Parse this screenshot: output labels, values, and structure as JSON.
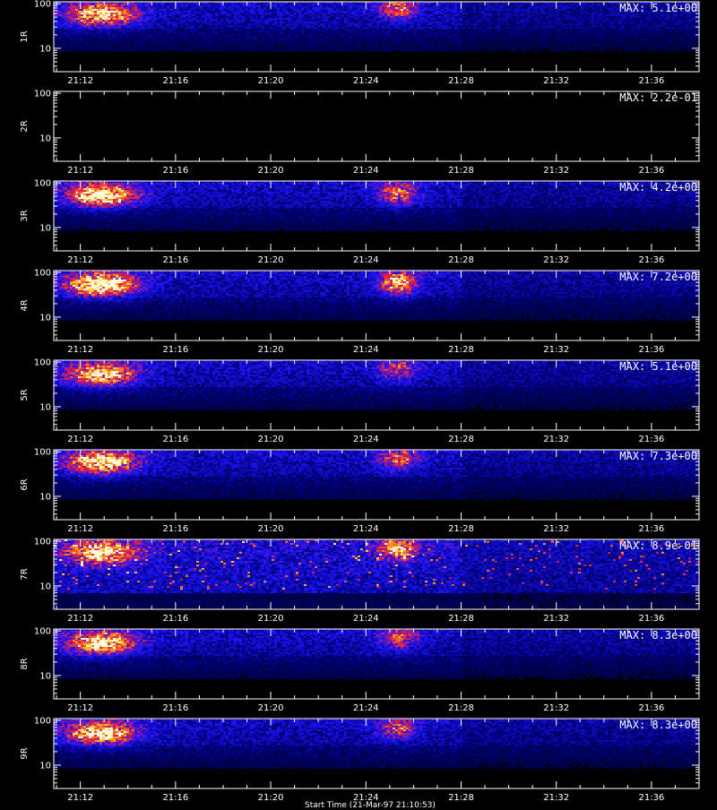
{
  "figure": {
    "footer_text": "Start Time (21-Mar-97 21:10:53)",
    "colors": {
      "background": "#000000",
      "frame": "#ffffff",
      "text": "#ffffff"
    }
  },
  "chart_data": [
    {
      "type": "heatmap",
      "ylabel": "1R",
      "max_label": "MAX: 5.1e+00",
      "y_tick_labels": [
        "100",
        "10"
      ],
      "x_tick_labels": [
        "21:12",
        "21:16",
        "21:20",
        "21:24",
        "21:28",
        "21:32",
        "21:36"
      ],
      "colorscale": "black-blue-red-yellow-white",
      "yscale": "log",
      "hotspots": [
        {
          "time": "21:12",
          "y": 60,
          "intensity": 0.85
        },
        {
          "time": "21:25",
          "y": 80,
          "intensity": 0.55
        }
      ]
    },
    {
      "type": "heatmap",
      "ylabel": "2R",
      "max_label": "MAX: 2.2e-01",
      "y_tick_labels": [
        "100",
        "10"
      ],
      "x_tick_labels": [
        "21:12",
        "21:16",
        "21:20",
        "21:24",
        "21:28",
        "21:32",
        "21:36"
      ],
      "colorscale": "black-blue-red-yellow-white",
      "yscale": "log",
      "hotspots": []
    },
    {
      "type": "heatmap",
      "ylabel": "3R",
      "max_label": "MAX: 4.2e+00",
      "y_tick_labels": [
        "100",
        "10"
      ],
      "x_tick_labels": [
        "21:12",
        "21:16",
        "21:20",
        "21:24",
        "21:28",
        "21:32",
        "21:36"
      ],
      "colorscale": "black-blue-red-yellow-white",
      "yscale": "log",
      "hotspots": [
        {
          "time": "21:12",
          "y": 55,
          "intensity": 0.95
        },
        {
          "time": "21:25",
          "y": 60,
          "intensity": 0.6
        }
      ]
    },
    {
      "type": "heatmap",
      "ylabel": "4R",
      "max_label": "MAX: 7.2e+00",
      "y_tick_labels": [
        "100",
        "10"
      ],
      "x_tick_labels": [
        "21:12",
        "21:16",
        "21:20",
        "21:24",
        "21:28",
        "21:32",
        "21:36"
      ],
      "colorscale": "black-blue-red-yellow-white",
      "yscale": "log",
      "hotspots": [
        {
          "time": "21:12",
          "y": 55,
          "intensity": 1.0
        },
        {
          "time": "21:25",
          "y": 60,
          "intensity": 0.75
        }
      ]
    },
    {
      "type": "heatmap",
      "ylabel": "5R",
      "max_label": "MAX: 5.1e+00",
      "y_tick_labels": [
        "100",
        "10"
      ],
      "x_tick_labels": [
        "21:12",
        "21:16",
        "21:20",
        "21:24",
        "21:28",
        "21:32",
        "21:36"
      ],
      "colorscale": "black-blue-red-yellow-white",
      "yscale": "log",
      "hotspots": [
        {
          "time": "21:12",
          "y": 55,
          "intensity": 0.85
        },
        {
          "time": "21:25",
          "y": 70,
          "intensity": 0.45
        }
      ]
    },
    {
      "type": "heatmap",
      "ylabel": "6R",
      "max_label": "MAX: 7.3e+00",
      "y_tick_labels": [
        "100",
        "10"
      ],
      "x_tick_labels": [
        "21:12",
        "21:16",
        "21:20",
        "21:24",
        "21:28",
        "21:32",
        "21:36"
      ],
      "colorscale": "black-blue-red-yellow-white",
      "yscale": "log",
      "hotspots": [
        {
          "time": "21:12",
          "y": 60,
          "intensity": 0.9
        },
        {
          "time": "21:25",
          "y": 70,
          "intensity": 0.55
        }
      ]
    },
    {
      "type": "heatmap",
      "ylabel": "7R",
      "max_label": "MAX: 8.9e-01",
      "y_tick_labels": [
        "100",
        "10"
      ],
      "x_tick_labels": [
        "21:12",
        "21:16",
        "21:20",
        "21:24",
        "21:28",
        "21:32",
        "21:36"
      ],
      "colorscale": "black-blue-red-yellow-white",
      "yscale": "log",
      "hotspots": [
        {
          "time": "21:12",
          "y": 60,
          "intensity": 0.8
        },
        {
          "time": "21:25",
          "y": 70,
          "intensity": 0.65
        }
      ]
    },
    {
      "type": "heatmap",
      "ylabel": "8R",
      "max_label": "MAX: 8.3e+00",
      "y_tick_labels": [
        "100",
        "10"
      ],
      "x_tick_labels": [
        "21:12",
        "21:16",
        "21:20",
        "21:24",
        "21:28",
        "21:32",
        "21:36"
      ],
      "colorscale": "black-blue-red-yellow-white",
      "yscale": "log",
      "hotspots": [
        {
          "time": "21:12",
          "y": 55,
          "intensity": 0.9
        },
        {
          "time": "21:25",
          "y": 70,
          "intensity": 0.5
        }
      ]
    },
    {
      "type": "heatmap",
      "ylabel": "9R",
      "max_label": "MAX: 8.3e+00",
      "y_tick_labels": [
        "100",
        "10"
      ],
      "x_tick_labels": [
        "21:12",
        "21:16",
        "21:20",
        "21:24",
        "21:28",
        "21:32",
        "21:36"
      ],
      "colorscale": "black-blue-red-yellow-white",
      "yscale": "log",
      "hotspots": [
        {
          "time": "21:12",
          "y": 55,
          "intensity": 0.9
        },
        {
          "time": "21:25",
          "y": 70,
          "intensity": 0.5
        }
      ]
    }
  ]
}
